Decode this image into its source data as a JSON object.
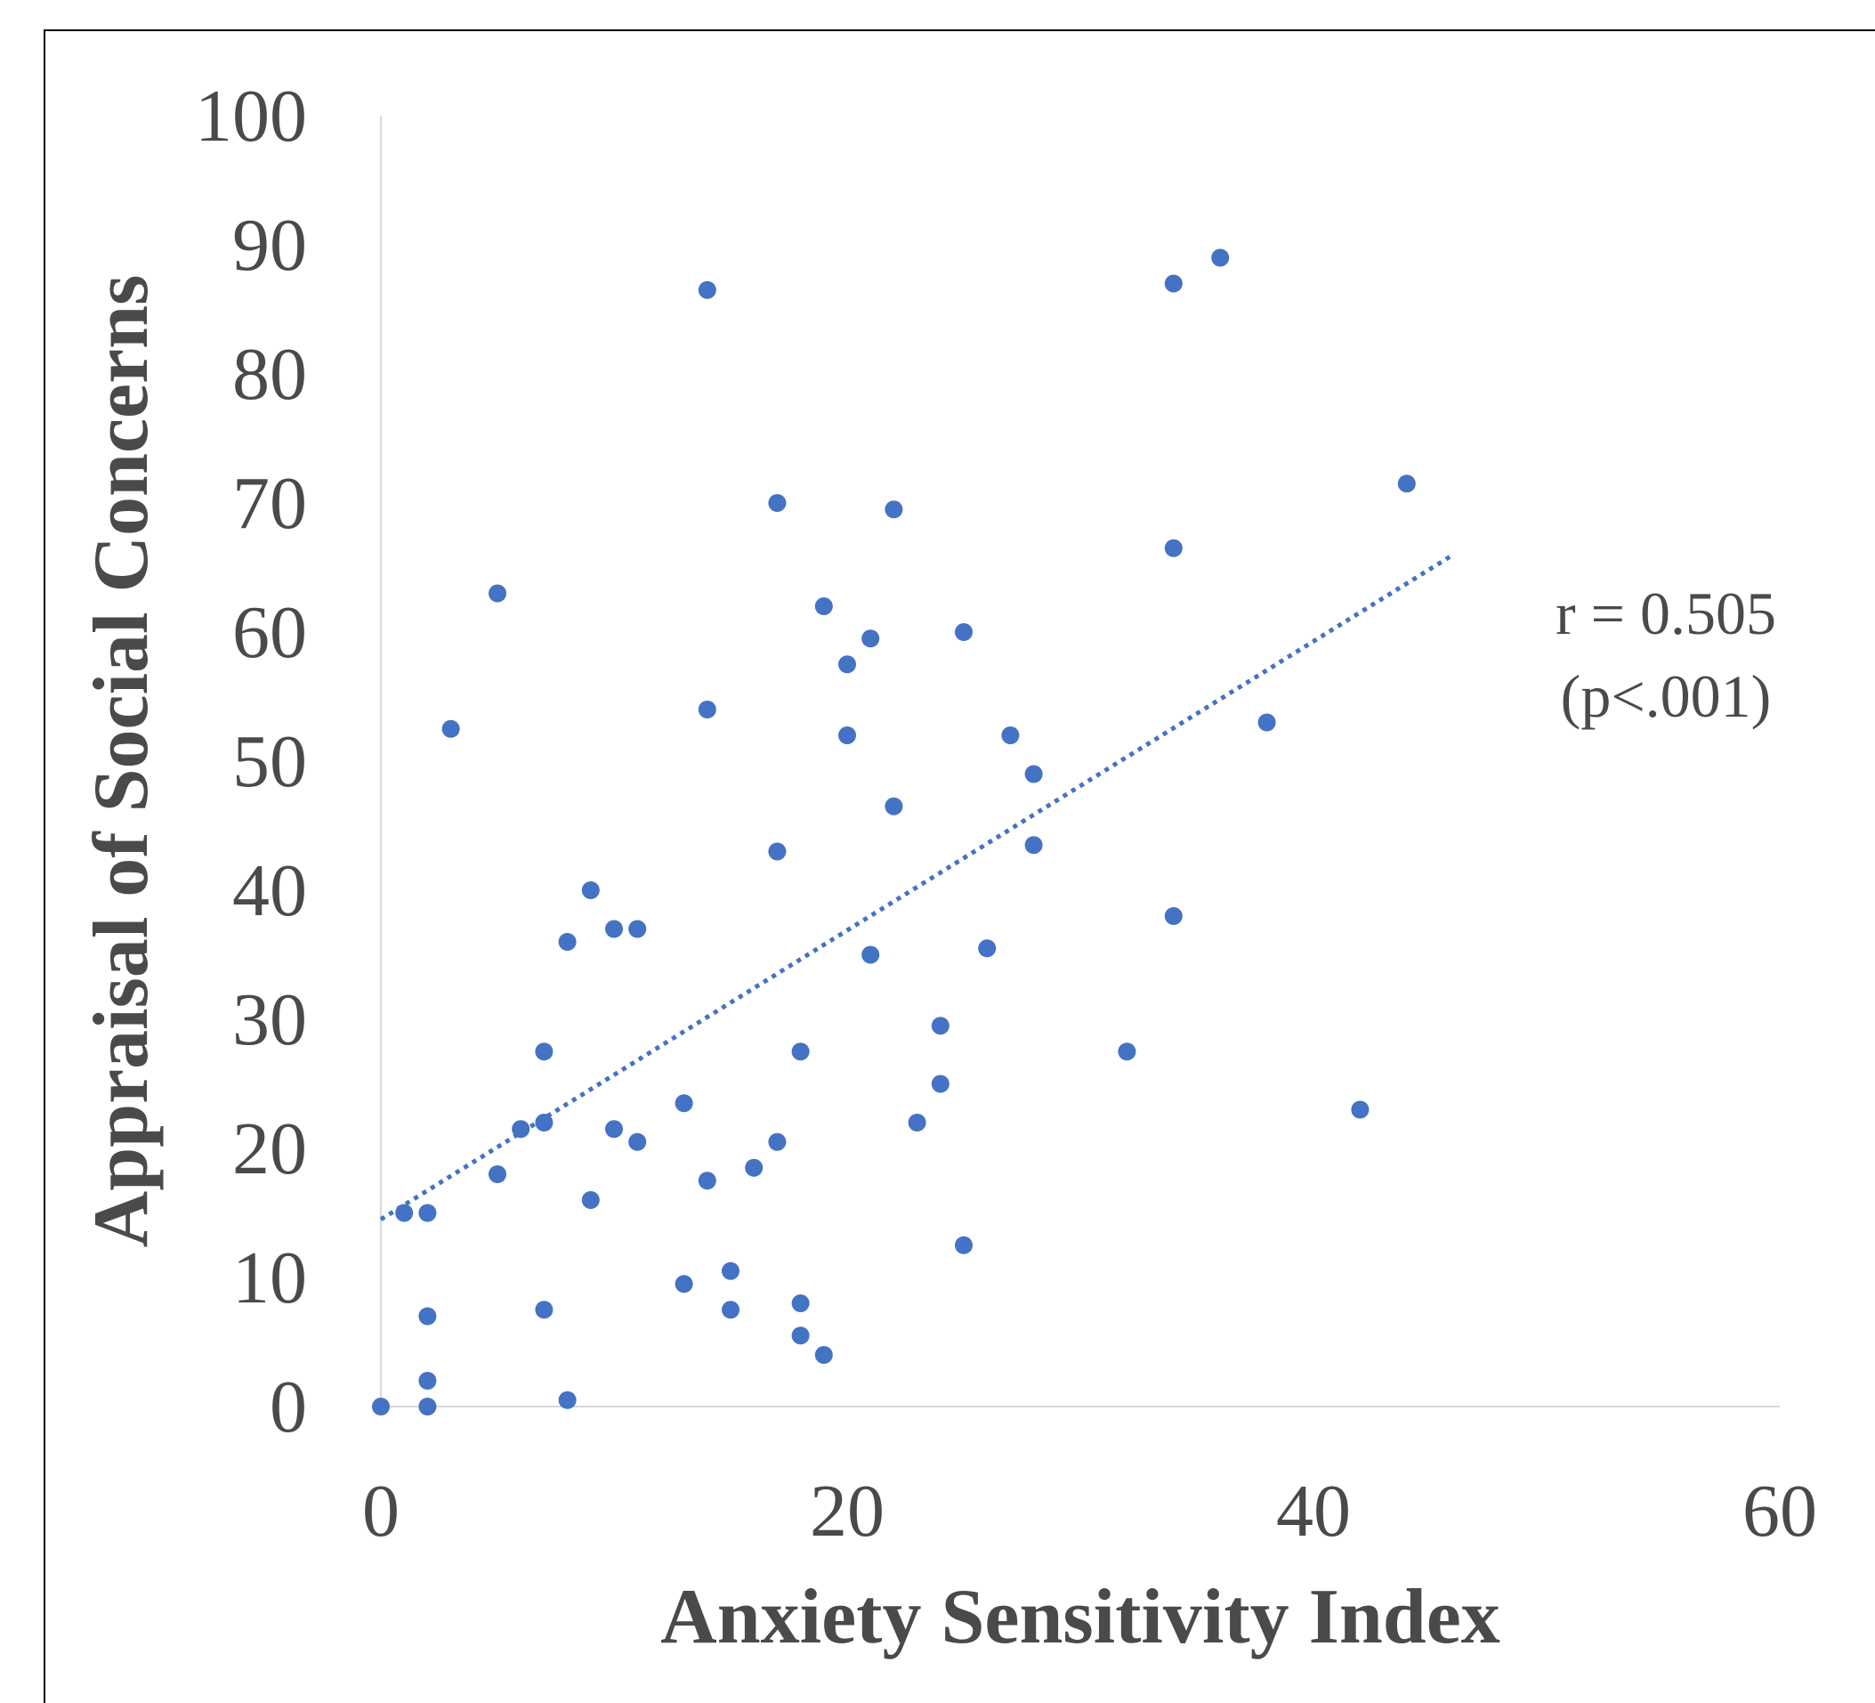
{
  "chart_data": {
    "type": "scatter",
    "title": "",
    "xlabel": "Anxiety Sensitivity Index",
    "ylabel": "Appraisal of Social Concerns",
    "xlim": [
      0,
      60
    ],
    "ylim": [
      0,
      100
    ],
    "xticks": [
      "0",
      "20",
      "40",
      "60"
    ],
    "yticks": [
      "0",
      "10",
      "20",
      "30",
      "40",
      "50",
      "60",
      "70",
      "80",
      "90",
      "100"
    ],
    "grid": false,
    "legend": "none",
    "point_color": "#4472c4",
    "trendline": {
      "style": "dotted",
      "color": "#4472c4",
      "x": [
        0,
        46
      ],
      "y": [
        14.5,
        66.0
      ]
    },
    "annotation": {
      "lines": [
        "r = 0.505",
        "(p<.001)"
      ]
    },
    "points": [
      {
        "x": 0,
        "y": 0
      },
      {
        "x": 1,
        "y": 15
      },
      {
        "x": 2,
        "y": 15
      },
      {
        "x": 2,
        "y": 7
      },
      {
        "x": 2,
        "y": 2
      },
      {
        "x": 2,
        "y": 0
      },
      {
        "x": 3,
        "y": 52.5
      },
      {
        "x": 5,
        "y": 63
      },
      {
        "x": 5,
        "y": 18
      },
      {
        "x": 6,
        "y": 21.5
      },
      {
        "x": 7,
        "y": 27.5
      },
      {
        "x": 7,
        "y": 22
      },
      {
        "x": 7,
        "y": 7.5
      },
      {
        "x": 8,
        "y": 36
      },
      {
        "x": 8,
        "y": 0.5
      },
      {
        "x": 9,
        "y": 40
      },
      {
        "x": 9,
        "y": 16
      },
      {
        "x": 10,
        "y": 37
      },
      {
        "x": 10,
        "y": 21.5
      },
      {
        "x": 11,
        "y": 37
      },
      {
        "x": 11,
        "y": 20.5
      },
      {
        "x": 13,
        "y": 23.5
      },
      {
        "x": 13,
        "y": 9.5
      },
      {
        "x": 14,
        "y": 86.5
      },
      {
        "x": 14,
        "y": 54
      },
      {
        "x": 14,
        "y": 17.5
      },
      {
        "x": 15,
        "y": 10.5
      },
      {
        "x": 15,
        "y": 7.5
      },
      {
        "x": 16,
        "y": 18.5
      },
      {
        "x": 17,
        "y": 70
      },
      {
        "x": 17,
        "y": 43
      },
      {
        "x": 17,
        "y": 20.5
      },
      {
        "x": 18,
        "y": 27.5
      },
      {
        "x": 18,
        "y": 8
      },
      {
        "x": 18,
        "y": 5.5
      },
      {
        "x": 19,
        "y": 62
      },
      {
        "x": 19,
        "y": 4
      },
      {
        "x": 20,
        "y": 57.5
      },
      {
        "x": 20,
        "y": 52
      },
      {
        "x": 21,
        "y": 59.5
      },
      {
        "x": 21,
        "y": 35
      },
      {
        "x": 22,
        "y": 69.5
      },
      {
        "x": 22,
        "y": 46.5
      },
      {
        "x": 23,
        "y": 22
      },
      {
        "x": 24,
        "y": 29.5
      },
      {
        "x": 24,
        "y": 25
      },
      {
        "x": 25,
        "y": 60
      },
      {
        "x": 25,
        "y": 12.5
      },
      {
        "x": 26,
        "y": 35.5
      },
      {
        "x": 27,
        "y": 52
      },
      {
        "x": 28,
        "y": 49
      },
      {
        "x": 28,
        "y": 43.5
      },
      {
        "x": 32,
        "y": 27.5
      },
      {
        "x": 34,
        "y": 87
      },
      {
        "x": 34,
        "y": 66.5
      },
      {
        "x": 34,
        "y": 38
      },
      {
        "x": 36,
        "y": 89
      },
      {
        "x": 38,
        "y": 53
      },
      {
        "x": 42,
        "y": 23
      },
      {
        "x": 44,
        "y": 71.5
      }
    ]
  }
}
